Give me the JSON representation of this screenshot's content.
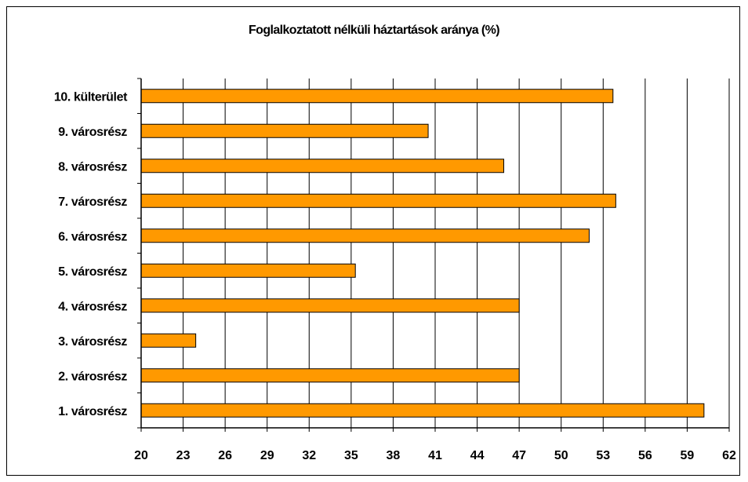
{
  "chart_data": {
    "type": "bar",
    "orientation": "horizontal",
    "title": "Foglalkoztatott nélküli háztartások aránya (%)",
    "xlabel": "",
    "ylabel": "",
    "categories": [
      "1. városrész",
      "2. városrész",
      "3. városrész",
      "4. városrész",
      "5. városrész",
      "6. városrész",
      "7. városrész",
      "8. városrész",
      "9. városrész",
      "10. külterület"
    ],
    "values": [
      60.2,
      47.0,
      23.9,
      47.0,
      35.3,
      52.0,
      53.9,
      45.9,
      40.5,
      53.7
    ],
    "xlim": [
      20,
      62
    ],
    "xticks": [
      "20",
      "23",
      "26",
      "29",
      "32",
      "35",
      "38",
      "41",
      "44",
      "47",
      "50",
      "53",
      "56",
      "59",
      "62"
    ],
    "grid": "vertical",
    "legend": "none",
    "colors": {
      "bar": "#FF9900",
      "bar_border": "#000000",
      "grid": "#000000"
    }
  }
}
